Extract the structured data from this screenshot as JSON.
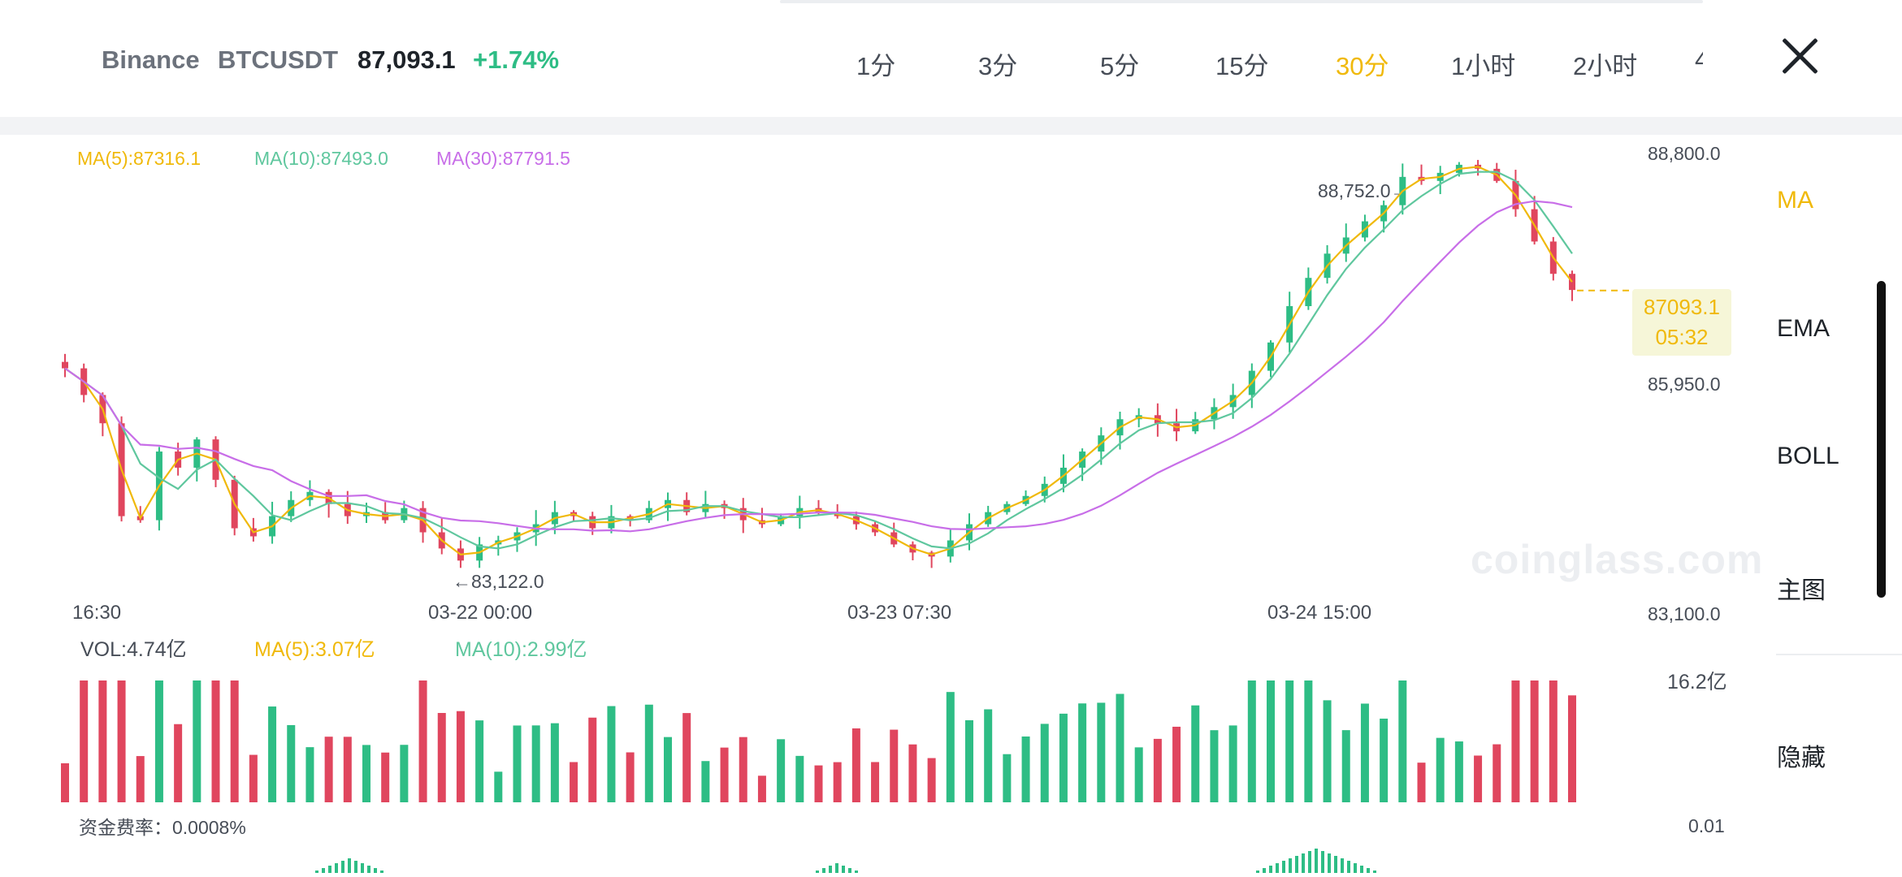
{
  "header": {
    "exchange": "Binance",
    "symbol": "BTCUSDT",
    "price": "87,093.1",
    "change": "+1.74%",
    "intervals": [
      "1分",
      "3分",
      "5分",
      "15分",
      "30分",
      "1小时",
      "2小时",
      "4"
    ],
    "active_interval": "30分"
  },
  "indicators": {
    "ma5": "MA(5):87316.1",
    "ma10": "MA(10):87493.0",
    "ma30": "MA(30):87791.5"
  },
  "price_axis": {
    "labels": [
      "88,800.0",
      "85,950.0",
      "83,100.0"
    ],
    "high_label": "88,752.0→",
    "low_label": "←83,122.0",
    "current_price": "87093.1",
    "countdown": "05:32"
  },
  "time_axis": [
    "16:30",
    "03-22 00:00",
    "03-23 07:30",
    "03-24 15:00"
  ],
  "volume": {
    "vol": "VOL:4.74亿",
    "ma5": "MA(5):3.07亿",
    "ma10": "MA(10):2.99亿",
    "max_label": "16.2亿"
  },
  "funding": {
    "label": "资金费率：0.0008%",
    "axis_label": "0.01"
  },
  "watermark": "coinglass.com",
  "side_menu": {
    "items": [
      "MA",
      "EMA",
      "BOLL",
      "主图",
      "隐藏"
    ],
    "active": "MA"
  },
  "colors": {
    "up": "#2ebd85",
    "down": "#e0465e",
    "ma5": "#f0b90b",
    "ma10": "#5fc79e",
    "ma30": "#c86ee8",
    "accent": "#f0b90b"
  },
  "chart_data": {
    "type": "candlestick",
    "price_range": [
      83100,
      88800
    ],
    "closes": [
      86130,
      85800,
      85450,
      84300,
      84250,
      85100,
      84900,
      85250,
      84750,
      84150,
      84050,
      84300,
      84500,
      84600,
      84450,
      84300,
      84350,
      84250,
      84400,
      84100,
      83900,
      83750,
      83950,
      84000,
      84100,
      84200,
      84350,
      84300,
      84150,
      84300,
      84250,
      84400,
      84500,
      84350,
      84450,
      84400,
      84250,
      84200,
      84300,
      84400,
      84350,
      84300,
      84200,
      84100,
      83950,
      83850,
      83800,
      84000,
      84200,
      84350,
      84450,
      84550,
      84700,
      84900,
      85100,
      85300,
      85500,
      85550,
      85450,
      85350,
      85500,
      85650,
      85800,
      86100,
      86450,
      86900,
      87250,
      87550,
      87750,
      87950,
      88150,
      88500,
      88450,
      88550,
      88650,
      88600,
      88450,
      88100,
      87700,
      87300,
      87100
    ],
    "ma5_last": 87316.1,
    "ma10_last": 87493.0,
    "ma30_last": 87791.5,
    "high": 88752.0,
    "low": 83122.0,
    "last": 87093.1,
    "volume_max": "16.2亿",
    "x_labels": [
      "16:30",
      "03-22 00:00",
      "03-23 07:30",
      "03-24 15:00"
    ]
  }
}
